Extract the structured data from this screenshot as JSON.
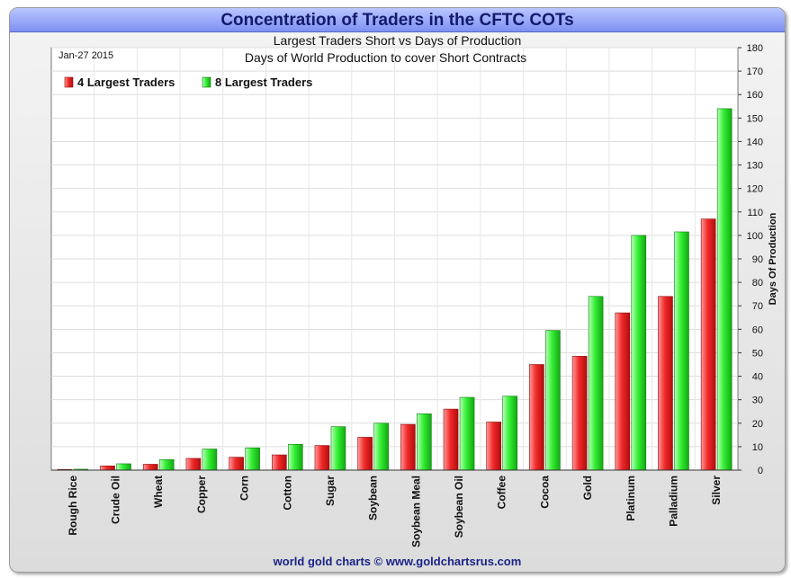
{
  "header": {
    "title": "Concentration of Traders in the CFTC COTs",
    "subtitle": "Largest Traders Short vs Days of Production"
  },
  "footer": {
    "credit": "world gold charts © www.goldchartsrus.com"
  },
  "chart_data": {
    "type": "bar",
    "title": "Days of World Production to cover Short Contracts",
    "date": "Jan-27 2015",
    "ylabel": "Days Of Production",
    "ylim": [
      0,
      180
    ],
    "yticks": [
      0,
      10,
      20,
      30,
      40,
      50,
      60,
      70,
      80,
      90,
      100,
      110,
      120,
      130,
      140,
      150,
      160,
      170,
      180
    ],
    "y_axis_side": "right",
    "grid": true,
    "legend_position": "top-left",
    "categories": [
      "Rough Rice",
      "Crude Oil",
      "Wheat",
      "Copper",
      "Corn",
      "Cotton",
      "Sugar",
      "Soybean",
      "Soybean Meal",
      "Soybean Oil",
      "Coffee",
      "Cocoa",
      "Gold",
      "Platinum",
      "Palladium",
      "Silver"
    ],
    "series": [
      {
        "name": "4 Largest Traders",
        "color": "#ee1c1c",
        "values": [
          0.3,
          1.8,
          2.5,
          5,
          5.5,
          6.5,
          10.5,
          14,
          19.5,
          26,
          20.5,
          45,
          48.5,
          67,
          74,
          107
        ]
      },
      {
        "name": "8 Largest Traders",
        "color": "#22e822",
        "values": [
          0.4,
          2.7,
          4.5,
          9,
          9.5,
          11,
          18.5,
          20,
          24,
          31,
          31.5,
          59.5,
          74,
          100,
          101.5,
          154
        ]
      }
    ]
  }
}
